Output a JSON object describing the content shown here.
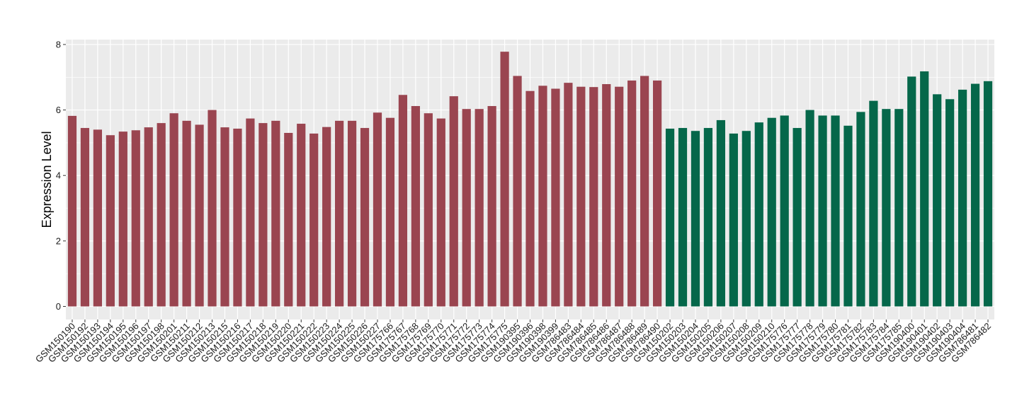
{
  "chart_data": {
    "type": "bar",
    "title": "",
    "xlabel": "",
    "ylabel": "Expression Level",
    "ylim": [
      -0.4,
      8.15
    ],
    "yticks": [
      0,
      2,
      4,
      6,
      8
    ],
    "grid": true,
    "legend": "none",
    "colors": {
      "group1": "#9a4550",
      "group2": "#05674a",
      "panel": "#ebebeb",
      "grid": "#ffffff"
    },
    "categories": [
      "GSM150190",
      "GSM150192",
      "GSM150193",
      "GSM150194",
      "GSM150195",
      "GSM150196",
      "GSM150197",
      "GSM150198",
      "GSM150201",
      "GSM150211",
      "GSM150212",
      "GSM150213",
      "GSM150215",
      "GSM150216",
      "GSM150217",
      "GSM150218",
      "GSM150219",
      "GSM150220",
      "GSM150221",
      "GSM150222",
      "GSM150223",
      "GSM150224",
      "GSM150225",
      "GSM150226",
      "GSM150227",
      "GSM175766",
      "GSM175767",
      "GSM175768",
      "GSM175769",
      "GSM175770",
      "GSM175771",
      "GSM175772",
      "GSM175773",
      "GSM175774",
      "GSM175775",
      "GSM190395",
      "GSM190396",
      "GSM190398",
      "GSM190399",
      "GSM786483",
      "GSM786484",
      "GSM786485",
      "GSM786486",
      "GSM786487",
      "GSM786488",
      "GSM786489",
      "GSM786490",
      "GSM150202",
      "GSM150203",
      "GSM150204",
      "GSM150205",
      "GSM150206",
      "GSM150207",
      "GSM150208",
      "GSM150209",
      "GSM150210",
      "GSM175776",
      "GSM175777",
      "GSM175778",
      "GSM175779",
      "GSM175780",
      "GSM175781",
      "GSM175782",
      "GSM175783",
      "GSM175784",
      "GSM175785",
      "GSM190400",
      "GSM190401",
      "GSM190402",
      "GSM190403",
      "GSM190404",
      "GSM786481",
      "GSM786482"
    ],
    "values": [
      5.82,
      5.45,
      5.4,
      5.23,
      5.34,
      5.38,
      5.47,
      5.6,
      5.9,
      5.67,
      5.55,
      6.0,
      5.47,
      5.43,
      5.74,
      5.6,
      5.67,
      5.3,
      5.58,
      5.28,
      5.48,
      5.67,
      5.67,
      5.45,
      5.92,
      5.76,
      6.46,
      6.12,
      5.9,
      5.74,
      6.42,
      6.03,
      6.03,
      6.12,
      7.78,
      7.04,
      6.58,
      6.74,
      6.65,
      6.83,
      6.71,
      6.7,
      6.79,
      6.71,
      6.9,
      7.04,
      6.9,
      5.43,
      5.45,
      5.36,
      5.45,
      5.69,
      5.28,
      5.36,
      5.62,
      5.76,
      5.83,
      5.45,
      6.0,
      5.83,
      5.83,
      5.52,
      5.94,
      6.28,
      6.03,
      6.03,
      7.02,
      7.18,
      6.48,
      6.33,
      6.62,
      6.8,
      6.88
    ],
    "group": [
      1,
      1,
      1,
      1,
      1,
      1,
      1,
      1,
      1,
      1,
      1,
      1,
      1,
      1,
      1,
      1,
      1,
      1,
      1,
      1,
      1,
      1,
      1,
      1,
      1,
      1,
      1,
      1,
      1,
      1,
      1,
      1,
      1,
      1,
      1,
      1,
      1,
      1,
      1,
      1,
      1,
      1,
      1,
      1,
      1,
      1,
      1,
      2,
      2,
      2,
      2,
      2,
      2,
      2,
      2,
      2,
      2,
      2,
      2,
      2,
      2,
      2,
      2,
      2,
      2,
      2,
      2,
      2,
      2,
      2,
      2,
      2,
      2
    ]
  }
}
